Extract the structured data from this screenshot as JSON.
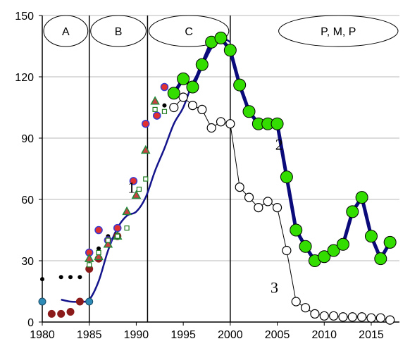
{
  "chart_data": {
    "type": "line",
    "xlim": [
      1980,
      2018
    ],
    "ylim": [
      0,
      150
    ],
    "x_ticks": [
      "1980",
      "1985",
      "1990",
      "1995",
      "2000",
      "2005",
      "2010",
      "2015"
    ],
    "y_ticks": [
      "0",
      "30",
      "60",
      "90",
      "120",
      "150"
    ],
    "grid": "horizontal",
    "legend": "none",
    "phase_lines": [
      1985,
      1991.2,
      2000
    ],
    "phases": [
      {
        "label": "A",
        "from": 1980,
        "to": 1985
      },
      {
        "label": "B",
        "from": 1985,
        "to": 1991.2
      },
      {
        "label": "C",
        "from": 1991.2,
        "to": 2000
      },
      {
        "label": "P,  M,  P",
        "from": 2005,
        "to": 2018
      }
    ],
    "annotations": [
      {
        "text": "1",
        "x": 1989.5,
        "y": 66
      },
      {
        "text": "2",
        "x": 2005.2,
        "y": 87
      },
      {
        "text": "3",
        "x": 2004.7,
        "y": 17
      }
    ],
    "colors": {
      "line2": "#0a0a7a",
      "markers2": "#33dd00",
      "trend1": "#14148c",
      "black": "#000000",
      "maroon": "#8b1a1a",
      "teal": "#2e8bb5",
      "red_blue": "#e03030",
      "green": "#1f7a1f"
    },
    "series": [
      {
        "marker": "green-circle-thick-line",
        "x": [
          1994,
          1995,
          1996,
          1997,
          1998,
          1999,
          2000,
          2001,
          2002,
          2003,
          2004,
          2005,
          2006,
          2007,
          2008,
          2009,
          2010,
          2011,
          2012,
          2013,
          2014,
          2015,
          2016,
          2017
        ],
        "y": [
          112,
          119,
          115,
          126,
          137,
          139,
          133,
          116,
          103,
          97,
          97,
          97,
          71,
          45,
          37,
          30,
          32,
          35,
          38,
          54,
          61,
          42,
          31,
          39
        ]
      },
      {
        "marker": "white-circle-thin-line",
        "x": [
          1994,
          1995,
          1996,
          1997,
          1998,
          1999,
          2000,
          2001,
          2002,
          2003,
          2004,
          2005,
          2006,
          2007,
          2008,
          2009,
          2010,
          2011,
          2012,
          2013,
          2014,
          2015,
          2016,
          2017
        ],
        "y": [
          105,
          110,
          106,
          104,
          95,
          98,
          97,
          66,
          61,
          56,
          59,
          56,
          35,
          10,
          7,
          4,
          3,
          3,
          2.5,
          2.5,
          2.5,
          2,
          2,
          1
        ]
      },
      {
        "marker": "smooth-trend-line",
        "x": [
          1982,
          1983,
          1984,
          1985,
          1986,
          1987,
          1988,
          1989,
          1990,
          1991,
          1992,
          1993,
          1994,
          1995,
          1996,
          1997,
          1998,
          1999,
          2000
        ],
        "y": [
          11,
          10,
          10,
          11,
          20,
          35,
          46,
          52,
          54,
          61,
          74,
          85,
          97,
          105,
          117,
          125,
          134,
          139,
          137
        ]
      },
      {
        "marker": "black-dot",
        "x": [
          1980,
          1982,
          1983,
          1984,
          1986,
          1987,
          1988,
          1992,
          1993
        ],
        "y": [
          21,
          22,
          22,
          22,
          36,
          42,
          45,
          104,
          106
        ]
      },
      {
        "marker": "maroon-circle",
        "x": [
          1981,
          1982,
          1983,
          1984,
          1985,
          1986,
          1988
        ],
        "y": [
          4,
          4,
          5,
          10,
          26,
          31,
          42
        ]
      },
      {
        "marker": "teal-circle",
        "x": [
          1980,
          1985
        ],
        "y": [
          10,
          10
        ]
      },
      {
        "marker": "red-circle-blue-ring",
        "x": [
          1985,
          1986,
          1987,
          1988,
          1989.7,
          1991,
          1992.2,
          1993
        ],
        "y": [
          34,
          45,
          40,
          46,
          69,
          97,
          101,
          115
        ]
      },
      {
        "marker": "triangle",
        "x": [
          1985,
          1986,
          1987,
          1988,
          1989,
          1990,
          1991,
          1992
        ],
        "y": [
          31,
          32,
          38,
          42,
          54,
          62,
          84,
          108
        ]
      },
      {
        "marker": "open-square",
        "x": [
          1985,
          1986,
          1987,
          1988,
          1989,
          1990.3,
          1991,
          1992,
          1993
        ],
        "y": [
          28,
          34,
          40,
          42,
          46,
          65,
          70,
          104,
          103
        ]
      }
    ]
  }
}
